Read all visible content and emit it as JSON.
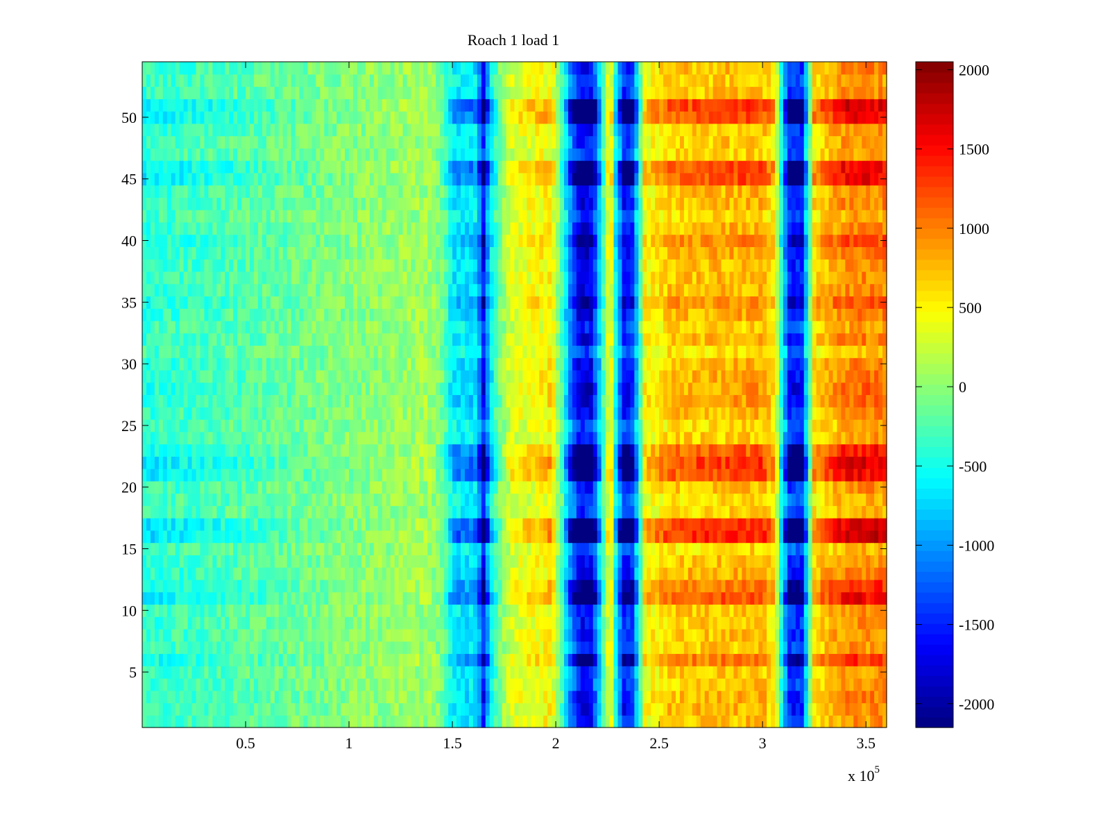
{
  "chart_data": {
    "type": "heatmap",
    "title": "Roach 1 load 1",
    "xlabel": "",
    "ylabel": "",
    "x_exponent_label": "x 10",
    "x_exponent_power": "5",
    "x_scale": 100000,
    "xlim": [
      0,
      360000
    ],
    "ylim": [
      0.5,
      54.5
    ],
    "x_ticks": [
      50000,
      100000,
      150000,
      200000,
      250000,
      300000,
      350000
    ],
    "x_tick_labels": [
      "0.5",
      "1",
      "1.5",
      "2",
      "2.5",
      "3",
      "3.5"
    ],
    "y_ticks": [
      5,
      10,
      15,
      20,
      25,
      30,
      35,
      40,
      45,
      50
    ],
    "y_tick_labels": [
      "5",
      "10",
      "15",
      "20",
      "25",
      "30",
      "35",
      "40",
      "45",
      "50"
    ],
    "rows": 54,
    "colorbar": {
      "colormap": "jet",
      "clim": [
        -2150,
        2050
      ],
      "ticks": [
        -2000,
        -1500,
        -1000,
        -500,
        0,
        500,
        1000,
        1500,
        2000
      ],
      "tick_labels": [
        "-2000",
        "-1500",
        "-1000",
        "-500",
        "0",
        "500",
        "1000",
        "1500",
        "2000"
      ]
    },
    "column_profile": [
      {
        "x": 0,
        "value": -450
      },
      {
        "x": 40000,
        "value": -300
      },
      {
        "x": 90000,
        "value": -80
      },
      {
        "x": 140000,
        "value": 100
      },
      {
        "x": 146000,
        "value": -200
      },
      {
        "x": 150000,
        "value": -750
      },
      {
        "x": 162000,
        "value": -800
      },
      {
        "x": 165000,
        "value": -1800
      },
      {
        "x": 168000,
        "value": -800
      },
      {
        "x": 172000,
        "value": -200
      },
      {
        "x": 178000,
        "value": 350
      },
      {
        "x": 198000,
        "value": 600
      },
      {
        "x": 203000,
        "value": -300
      },
      {
        "x": 207000,
        "value": -1200
      },
      {
        "x": 212000,
        "value": -2000
      },
      {
        "x": 217000,
        "value": -1900
      },
      {
        "x": 221000,
        "value": -900
      },
      {
        "x": 225000,
        "value": 300
      },
      {
        "x": 227000,
        "value": 400
      },
      {
        "x": 229000,
        "value": -600
      },
      {
        "x": 233000,
        "value": -1800
      },
      {
        "x": 237000,
        "value": -1600
      },
      {
        "x": 240000,
        "value": -600
      },
      {
        "x": 243000,
        "value": 500
      },
      {
        "x": 255000,
        "value": 800
      },
      {
        "x": 300000,
        "value": 900
      },
      {
        "x": 306000,
        "value": 600
      },
      {
        "x": 309000,
        "value": -500
      },
      {
        "x": 313000,
        "value": -1700
      },
      {
        "x": 319000,
        "value": -1700
      },
      {
        "x": 322000,
        "value": -500
      },
      {
        "x": 325000,
        "value": 700
      },
      {
        "x": 340000,
        "value": 1100
      },
      {
        "x": 360000,
        "value": 1100
      }
    ],
    "row_bands": [
      {
        "y": 51,
        "intensity": 1.5
      },
      {
        "y": 50,
        "intensity": 1.4
      },
      {
        "y": 46,
        "intensity": 1.4
      },
      {
        "y": 45,
        "intensity": 1.4
      },
      {
        "y": 40,
        "intensity": 1.1
      },
      {
        "y": 35,
        "intensity": 1.1
      },
      {
        "y": 30,
        "intensity": 0.9
      },
      {
        "y": 28,
        "intensity": 1.0
      },
      {
        "y": 27,
        "intensity": 1.0
      },
      {
        "y": 23,
        "intensity": 1.3
      },
      {
        "y": 22,
        "intensity": 1.5
      },
      {
        "y": 21,
        "intensity": 1.4
      },
      {
        "y": 17,
        "intensity": 1.5
      },
      {
        "y": 16,
        "intensity": 1.6
      },
      {
        "y": 12,
        "intensity": 1.2
      },
      {
        "y": 11,
        "intensity": 1.4
      },
      {
        "y": 6,
        "intensity": 1.2
      },
      {
        "y": 2,
        "intensity": 0.9
      }
    ]
  }
}
